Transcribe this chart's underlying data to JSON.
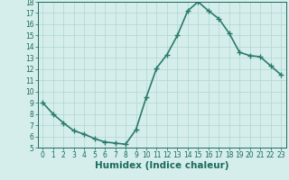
{
  "x": [
    0,
    1,
    2,
    3,
    4,
    5,
    6,
    7,
    8,
    9,
    10,
    11,
    12,
    13,
    14,
    15,
    16,
    17,
    18,
    19,
    20,
    21,
    22,
    23
  ],
  "y": [
    9.0,
    8.0,
    7.2,
    6.5,
    6.2,
    5.8,
    5.5,
    5.4,
    5.3,
    6.6,
    9.5,
    12.1,
    13.3,
    15.0,
    17.2,
    18.0,
    17.2,
    16.5,
    15.2,
    13.5,
    13.2,
    13.1,
    12.3,
    11.5
  ],
  "line_color": "#2a7a6e",
  "marker": "+",
  "marker_size": 4,
  "bg_color": "#d5eeeb",
  "grid_color": "#aed6d0",
  "xlabel": "Humidex (Indice chaleur)",
  "ylim": [
    5,
    18
  ],
  "xlim_min": -0.5,
  "xlim_max": 23.5,
  "yticks": [
    5,
    6,
    7,
    8,
    9,
    10,
    11,
    12,
    13,
    14,
    15,
    16,
    17,
    18
  ],
  "xticks": [
    0,
    1,
    2,
    3,
    4,
    5,
    6,
    7,
    8,
    9,
    10,
    11,
    12,
    13,
    14,
    15,
    16,
    17,
    18,
    19,
    20,
    21,
    22,
    23
  ],
  "tick_color": "#1a6a5e",
  "tick_fontsize": 5.5,
  "xlabel_fontsize": 7.5,
  "xlabel_fontweight": "bold",
  "linewidth": 1.2,
  "markeredgewidth": 1.0
}
